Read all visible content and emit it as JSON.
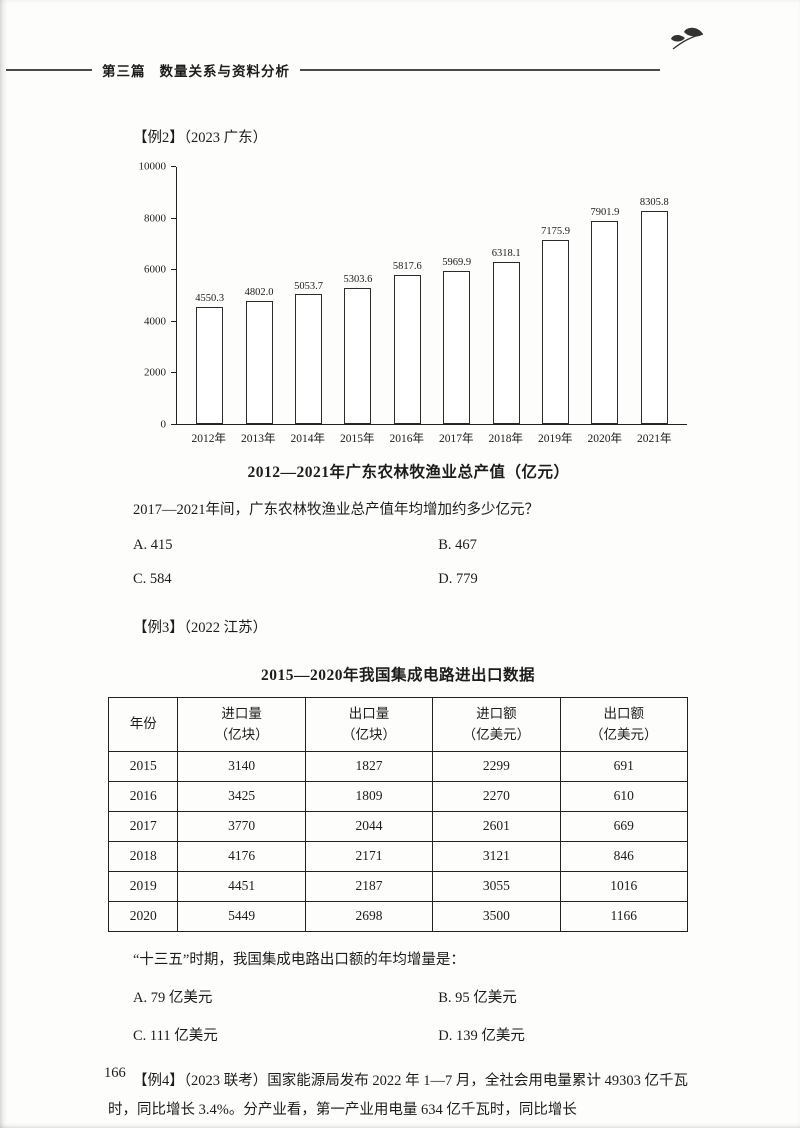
{
  "header": {
    "section": "第三篇",
    "title": "数量关系与资料分析"
  },
  "example2": {
    "label": "【例2】（2023 广东）",
    "question": "2017—2021年间，广东农林牧渔业总产值年均增加约多少亿元？",
    "options": [
      "A. 415",
      "B. 467",
      "C. 584",
      "D. 779"
    ]
  },
  "chart_data": [
    {
      "type": "bar",
      "title": "2012—2021年广东农林牧渔业总产值（亿元）",
      "categories": [
        "2012年",
        "2013年",
        "2014年",
        "2015年",
        "2016年",
        "2017年",
        "2018年",
        "2019年",
        "2020年",
        "2021年"
      ],
      "values": [
        4550.3,
        4802.0,
        5053.7,
        5303.6,
        5817.6,
        5969.9,
        6318.1,
        7175.9,
        7901.9,
        8305.8
      ],
      "value_labels": [
        "4550.3",
        "4802.0",
        "5053.7",
        "5303.6",
        "5817.6",
        "5969.9",
        "6318.1",
        "7175.9",
        "7901.9",
        "8305.8"
      ],
      "xlabel": "",
      "ylabel": "",
      "ylim": [
        0,
        10000
      ],
      "yticks": [
        0,
        2000,
        4000,
        6000,
        8000,
        10000
      ],
      "grid": false,
      "legend": false,
      "bar_fill": "#ffffff",
      "bar_border": "#2b2b2b"
    },
    {
      "type": "table",
      "title": "2015—2020年我国集成电路进出口数据",
      "columns": [
        {
          "line1": "年份",
          "line2": ""
        },
        {
          "line1": "进口量",
          "line2": "（亿块）"
        },
        {
          "line1": "出口量",
          "line2": "（亿块）"
        },
        {
          "line1": "进口额",
          "line2": "（亿美元）"
        },
        {
          "line1": "出口额",
          "line2": "（亿美元）"
        }
      ],
      "rows": [
        [
          "2015",
          "3140",
          "1827",
          "2299",
          "691"
        ],
        [
          "2016",
          "3425",
          "1809",
          "2270",
          "610"
        ],
        [
          "2017",
          "3770",
          "2044",
          "2601",
          "669"
        ],
        [
          "2018",
          "4176",
          "2171",
          "3121",
          "846"
        ],
        [
          "2019",
          "4451",
          "2187",
          "3055",
          "1016"
        ],
        [
          "2020",
          "5449",
          "2698",
          "3500",
          "1166"
        ]
      ]
    }
  ],
  "example3": {
    "label": "【例3】（2022 江苏）",
    "question": "“十三五”时期，我国集成电路出口额的年均增量是：",
    "options": [
      "A. 79 亿美元",
      "B. 95 亿美元",
      "C. 111 亿美元",
      "D. 139 亿美元"
    ]
  },
  "example4": {
    "text": "【例4】（2023 联考）国家能源局发布 2022 年 1—7 月，全社会用电量累计 49303 亿千瓦时，同比增长 3.4%。分产业看，第一产业用电量 634 亿千瓦时，同比增长"
  },
  "page_number": "166"
}
